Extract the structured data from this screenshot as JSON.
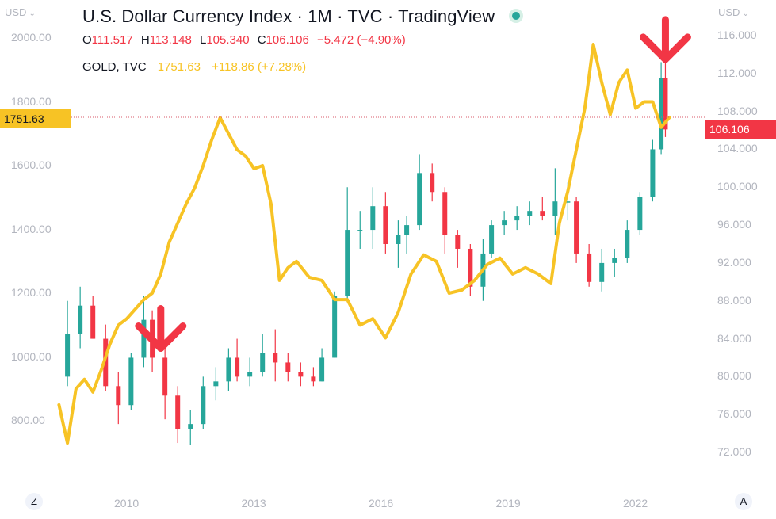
{
  "header": {
    "title": "U.S. Dollar Currency Index · 1M · TVC · TradingView",
    "ohlc": {
      "o_label": "O",
      "o": "111.517",
      "h_label": "H",
      "h": "113.148",
      "l_label": "L",
      "l": "105.340",
      "c_label": "C",
      "c": "106.106",
      "change": "−5.472 (−4.90%)"
    },
    "compare": {
      "label": "GOLD, TVC",
      "value": "1751.63",
      "change": "+118.86 (+7.28%)"
    }
  },
  "axes": {
    "left_unit": "USD",
    "right_unit": "USD",
    "left_chevron": "⌄",
    "right_chevron": "⌄"
  },
  "badges": {
    "gold_price": "1751.63",
    "dxy_price": "106.106"
  },
  "corners": {
    "left": "Z",
    "right": "A"
  },
  "colors": {
    "up": "#26a69a",
    "down": "#f23645",
    "gold": "#f7c325",
    "arrow": "#f23645",
    "axis_text": "#b2b5be"
  },
  "chart_data": {
    "type": "line",
    "x_ticks": [
      "2010",
      "2013",
      "2016",
      "2019",
      "2022"
    ],
    "left_axis": {
      "ticks": [
        "2000.00",
        "1800.00",
        "1600.00",
        "1400.00",
        "1200.00",
        "1000.00",
        "800.00"
      ],
      "range": [
        680,
        2100
      ]
    },
    "right_axis": {
      "ticks": [
        "116.000",
        "112.000",
        "108.000",
        "104.000",
        "100.000",
        "96.000",
        "92.000",
        "88.000",
        "84.000",
        "80.000",
        "76.000",
        "72.000"
      ],
      "range": [
        70,
        118
      ]
    },
    "x_range": [
      2008.4,
      2024.9
    ],
    "series": [
      {
        "name": "U.S. Dollar Currency Index",
        "render": "candles",
        "axis": "right",
        "x": [
          2008.6,
          2008.9,
          2009.2,
          2009.5,
          2009.8,
          2010.1,
          2010.4,
          2010.6,
          2010.9,
          2011.2,
          2011.5,
          2011.8,
          2012.1,
          2012.4,
          2012.6,
          2012.9,
          2013.2,
          2013.5,
          2013.8,
          2014.1,
          2014.4,
          2014.6,
          2014.9,
          2015.2,
          2015.5,
          2015.8,
          2016.1,
          2016.4,
          2016.6,
          2016.9,
          2017.2,
          2017.5,
          2017.8,
          2018.1,
          2018.4,
          2018.6,
          2018.9,
          2019.2,
          2019.5,
          2019.8,
          2020.1,
          2020.4,
          2020.6,
          2020.9,
          2021.2,
          2021.5,
          2021.8,
          2022.1,
          2022.4,
          2022.6,
          2022.7
        ],
        "open": [
          80.0,
          84.5,
          87.5,
          84.0,
          79.0,
          77.0,
          82.0,
          86.0,
          82.0,
          78.0,
          74.5,
          75.0,
          79.0,
          79.5,
          82.0,
          80.0,
          80.5,
          82.5,
          81.5,
          80.5,
          80.0,
          79.5,
          82.0,
          88.5,
          95.5,
          95.5,
          98.0,
          94.0,
          95.0,
          96.0,
          101.5,
          99.5,
          95.0,
          93.5,
          89.5,
          93.0,
          96.0,
          96.5,
          97.0,
          97.5,
          97.0,
          98.5,
          98.5,
          93.0,
          90.0,
          92.0,
          92.5,
          95.5,
          99.0,
          104.0,
          111.5
        ],
        "high": [
          88.0,
          89.5,
          88.5,
          85.5,
          80.5,
          82.5,
          88.5,
          87.0,
          83.0,
          79.0,
          76.5,
          80.0,
          81.0,
          83.0,
          84.0,
          82.0,
          84.5,
          85.0,
          82.5,
          81.5,
          81.0,
          83.0,
          89.0,
          100.0,
          97.5,
          100.0,
          99.5,
          96.5,
          97.0,
          103.5,
          102.5,
          100.0,
          95.5,
          94.0,
          94.5,
          96.5,
          97.5,
          98.0,
          98.5,
          99.0,
          102.0,
          100.5,
          99.0,
          94.0,
          93.5,
          93.5,
          96.5,
          99.5,
          105.0,
          113.2,
          113.2
        ],
        "low": [
          79.0,
          83.0,
          84.0,
          78.5,
          75.0,
          76.5,
          81.0,
          80.5,
          75.5,
          73.0,
          72.8,
          74.5,
          77.5,
          78.5,
          79.5,
          79.0,
          80.0,
          79.5,
          79.5,
          79.0,
          79.0,
          79.5,
          82.0,
          88.0,
          93.5,
          93.5,
          93.0,
          91.5,
          93.0,
          95.5,
          98.5,
          93.0,
          91.5,
          88.5,
          88.0,
          92.5,
          95.0,
          95.5,
          96.0,
          96.5,
          95.0,
          96.5,
          92.0,
          89.5,
          89.0,
          90.5,
          92.0,
          95.0,
          98.5,
          103.5,
          105.3
        ],
        "close": [
          84.5,
          87.5,
          84.0,
          79.0,
          77.0,
          82.0,
          86.0,
          82.0,
          78.0,
          74.5,
          75.0,
          79.0,
          79.5,
          82.0,
          80.0,
          80.5,
          82.5,
          81.5,
          80.5,
          80.0,
          79.5,
          82.0,
          88.5,
          95.5,
          95.5,
          98.0,
          94.0,
          95.0,
          96.0,
          101.5,
          99.5,
          95.0,
          93.5,
          89.5,
          93.0,
          96.0,
          96.5,
          97.0,
          97.5,
          97.0,
          98.5,
          98.5,
          93.0,
          90.0,
          92.0,
          92.5,
          95.5,
          99.0,
          104.0,
          111.5,
          106.1
        ]
      },
      {
        "name": "GOLD, TVC",
        "render": "line",
        "axis": "left",
        "x": [
          2008.4,
          2008.6,
          2008.8,
          2009.0,
          2009.2,
          2009.4,
          2009.6,
          2009.8,
          2010.0,
          2010.2,
          2010.4,
          2010.6,
          2010.8,
          2011.0,
          2011.2,
          2011.4,
          2011.6,
          2011.8,
          2012.0,
          2012.2,
          2012.4,
          2012.6,
          2012.8,
          2013.0,
          2013.2,
          2013.4,
          2013.6,
          2013.8,
          2014.0,
          2014.3,
          2014.6,
          2014.9,
          2015.2,
          2015.5,
          2015.8,
          2016.1,
          2016.4,
          2016.7,
          2017.0,
          2017.3,
          2017.6,
          2017.9,
          2018.2,
          2018.5,
          2018.8,
          2019.1,
          2019.4,
          2019.7,
          2020.0,
          2020.2,
          2020.4,
          2020.6,
          2020.8,
          2021.0,
          2021.2,
          2021.4,
          2021.6,
          2021.8,
          2022.0,
          2022.2,
          2022.4,
          2022.6,
          2022.8
        ],
        "values": [
          850,
          730,
          900,
          930,
          890,
          960,
          1040,
          1100,
          1120,
          1150,
          1180,
          1200,
          1260,
          1360,
          1420,
          1480,
          1530,
          1600,
          1680,
          1750,
          1700,
          1650,
          1630,
          1590,
          1600,
          1480,
          1240,
          1280,
          1300,
          1250,
          1240,
          1180,
          1180,
          1100,
          1120,
          1060,
          1140,
          1260,
          1320,
          1300,
          1200,
          1210,
          1240,
          1290,
          1310,
          1260,
          1280,
          1260,
          1230,
          1420,
          1520,
          1650,
          1780,
          1980,
          1860,
          1760,
          1860,
          1900,
          1780,
          1800,
          1800,
          1720,
          1751.63
        ]
      }
    ],
    "annotations": [
      {
        "type": "arrow-down",
        "x": 2010.8,
        "y_axis": "right",
        "y": 83.0
      },
      {
        "type": "arrow-down",
        "x": 2022.7,
        "y_axis": "right",
        "y": 113.5
      }
    ]
  }
}
